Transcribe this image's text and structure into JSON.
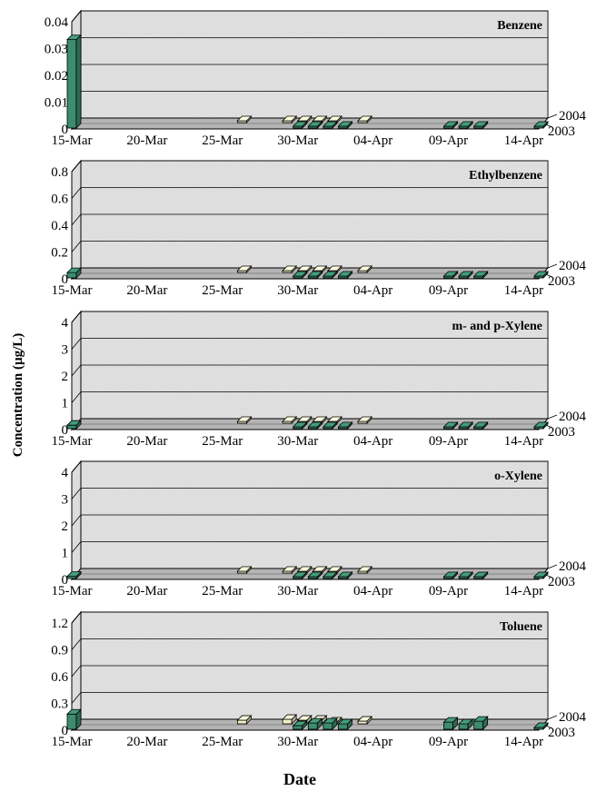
{
  "figure": {
    "ylabel": "Concentration (µg/L)",
    "xlabel": "Date",
    "x_tick_labels": [
      "15-Mar",
      "20-Mar",
      "25-Mar",
      "30-Mar",
      "04-Apr",
      "09-Apr",
      "14-Apr"
    ],
    "depth_labels": [
      "2004",
      "2003"
    ]
  },
  "colors": {
    "series_2003": "#3d8c6e",
    "series_2004": "#f2efc6",
    "wall": "#e6e6e6",
    "floor": "#b4b4b4"
  },
  "chart_data": [
    {
      "type": "bar",
      "title": "Benzene",
      "y_tick_labels": [
        "0",
        "0.01",
        "0.02",
        "0.03",
        "0.04"
      ],
      "ylim": [
        0,
        0.04
      ],
      "grid": true,
      "series": [
        {
          "name": "2003",
          "points": [
            {
              "day": 0,
              "value": 0.033
            },
            {
              "day": 15,
              "value": 0
            },
            {
              "day": 16,
              "value": 0
            },
            {
              "day": 17,
              "value": 0
            },
            {
              "day": 18,
              "value": 0
            },
            {
              "day": 25,
              "value": 0
            },
            {
              "day": 26,
              "value": 0
            },
            {
              "day": 27,
              "value": 0
            },
            {
              "day": 31,
              "value": 0
            }
          ]
        },
        {
          "name": "2004",
          "points": [
            {
              "day": 11,
              "value": 0
            },
            {
              "day": 14,
              "value": 0
            },
            {
              "day": 15,
              "value": 0
            },
            {
              "day": 16,
              "value": 0
            },
            {
              "day": 17,
              "value": 0
            },
            {
              "day": 19,
              "value": 0
            }
          ]
        }
      ]
    },
    {
      "type": "bar",
      "title": "Ethylbenzene",
      "y_tick_labels": [
        "0",
        "0.2",
        "0.4",
        "0.6",
        "0.8"
      ],
      "ylim": [
        0,
        0.8
      ],
      "grid": true,
      "series": [
        {
          "name": "2003",
          "points": [
            {
              "day": 0,
              "value": 0.04
            },
            {
              "day": 15,
              "value": 0
            },
            {
              "day": 16,
              "value": 0
            },
            {
              "day": 17,
              "value": 0
            },
            {
              "day": 18,
              "value": 0
            },
            {
              "day": 25,
              "value": 0
            },
            {
              "day": 26,
              "value": 0
            },
            {
              "day": 27,
              "value": 0
            },
            {
              "day": 31,
              "value": 0
            }
          ]
        },
        {
          "name": "2004",
          "points": [
            {
              "day": 11,
              "value": 0
            },
            {
              "day": 14,
              "value": 0
            },
            {
              "day": 15,
              "value": 0
            },
            {
              "day": 16,
              "value": 0
            },
            {
              "day": 17,
              "value": 0
            },
            {
              "day": 19,
              "value": 0
            }
          ]
        }
      ]
    },
    {
      "type": "bar",
      "title": "m- and p-Xylene",
      "y_tick_labels": [
        "0",
        "1",
        "2",
        "3",
        "4"
      ],
      "ylim": [
        0,
        4
      ],
      "grid": true,
      "series": [
        {
          "name": "2003",
          "points": [
            {
              "day": 0,
              "value": 0.13
            },
            {
              "day": 15,
              "value": 0
            },
            {
              "day": 16,
              "value": 0
            },
            {
              "day": 17,
              "value": 0
            },
            {
              "day": 18,
              "value": 0
            },
            {
              "day": 25,
              "value": 0
            },
            {
              "day": 26,
              "value": 0
            },
            {
              "day": 27,
              "value": 0
            },
            {
              "day": 31,
              "value": 0
            }
          ]
        },
        {
          "name": "2004",
          "points": [
            {
              "day": 11,
              "value": 0
            },
            {
              "day": 14,
              "value": 0
            },
            {
              "day": 15,
              "value": 0
            },
            {
              "day": 16,
              "value": 0
            },
            {
              "day": 17,
              "value": 0
            },
            {
              "day": 19,
              "value": 0
            }
          ]
        }
      ]
    },
    {
      "type": "bar",
      "title": "o-Xylene",
      "y_tick_labels": [
        "0",
        "1",
        "2",
        "3",
        "4"
      ],
      "ylim": [
        0,
        4
      ],
      "grid": true,
      "series": [
        {
          "name": "2003",
          "points": [
            {
              "day": 0,
              "value": 0.08
            },
            {
              "day": 15,
              "value": 0
            },
            {
              "day": 16,
              "value": 0
            },
            {
              "day": 17,
              "value": 0
            },
            {
              "day": 18,
              "value": 0
            },
            {
              "day": 25,
              "value": 0
            },
            {
              "day": 26,
              "value": 0
            },
            {
              "day": 27,
              "value": 0
            },
            {
              "day": 31,
              "value": 0
            }
          ]
        },
        {
          "name": "2004",
          "points": [
            {
              "day": 11,
              "value": 0.02
            },
            {
              "day": 14,
              "value": 0.02
            },
            {
              "day": 15,
              "value": 0.02
            },
            {
              "day": 16,
              "value": 0.02
            },
            {
              "day": 17,
              "value": 0.02
            },
            {
              "day": 19,
              "value": 0.02
            }
          ]
        }
      ]
    },
    {
      "type": "bar",
      "title": "Toluene",
      "y_tick_labels": [
        "0",
        "0.3",
        "0.6",
        "0.9",
        "1.2"
      ],
      "ylim": [
        0,
        1.2
      ],
      "grid": true,
      "series": [
        {
          "name": "2003",
          "points": [
            {
              "day": 0,
              "value": 0.17
            },
            {
              "day": 15,
              "value": 0.04
            },
            {
              "day": 16,
              "value": 0.07
            },
            {
              "day": 17,
              "value": 0.07
            },
            {
              "day": 18,
              "value": 0.06
            },
            {
              "day": 25,
              "value": 0.08
            },
            {
              "day": 26,
              "value": 0.06
            },
            {
              "day": 27,
              "value": 0.09
            },
            {
              "day": 31,
              "value": 0.02
            }
          ]
        },
        {
          "name": "2004",
          "points": [
            {
              "day": 11,
              "value": 0.04
            },
            {
              "day": 14,
              "value": 0.05
            },
            {
              "day": 15,
              "value": 0.04
            },
            {
              "day": 16,
              "value": 0.04
            },
            {
              "day": 17,
              "value": 0.02
            },
            {
              "day": 19,
              "value": 0.03
            }
          ]
        }
      ]
    }
  ]
}
